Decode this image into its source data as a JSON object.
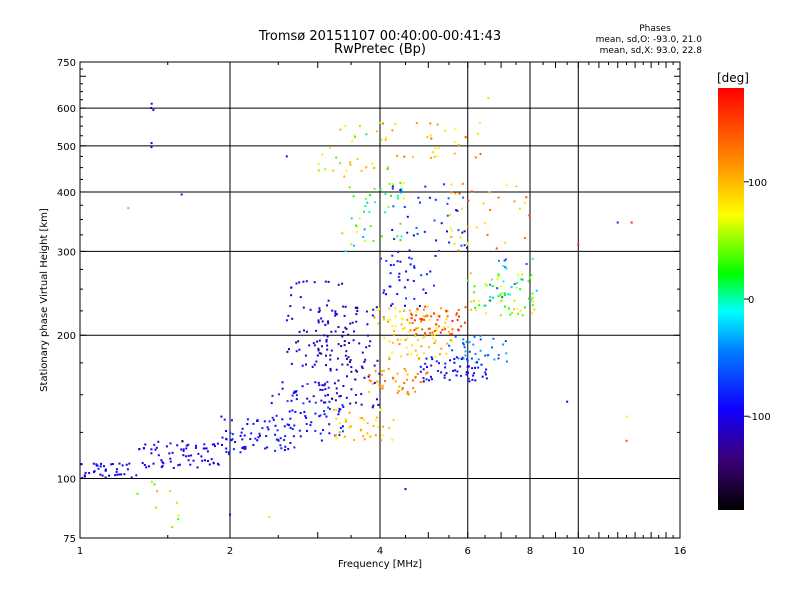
{
  "chart_data": {
    "type": "scatter",
    "title": "Tromsø 20151107 00:40:00-00:41:43",
    "subtitle": "RwPretec (Bp)",
    "xlabel": "Frequency [MHz]",
    "ylabel": "Stationary phase Virtual Height [km]",
    "x_scale": "log",
    "y_scale": "log",
    "xlim": [
      1,
      16
    ],
    "ylim": [
      75,
      750
    ],
    "x_ticks": [
      1,
      2,
      4,
      6,
      8,
      10,
      16
    ],
    "y_ticks": [
      75,
      100,
      200,
      300,
      400,
      500,
      600,
      750
    ],
    "x_gridlines": [
      2,
      4,
      6,
      8,
      10
    ],
    "y_gridlines": [
      100,
      200,
      300,
      400,
      500,
      600
    ],
    "info": {
      "heading": "Phases",
      "line1": "mean, sd,O: -93.0, 21.0",
      "line2": "mean, sd,X: 93.0, 22.8"
    },
    "colorbar": {
      "label": "[deg]",
      "ticks": [
        {
          "value": 100,
          "label": "100"
        },
        {
          "value": 0,
          "label": "0"
        },
        {
          "value": -100,
          "label": "-100"
        }
      ],
      "range": [
        -180,
        180
      ]
    },
    "clusters": [
      {
        "xmin": 1.0,
        "xmax": 1.3,
        "ymin": 100,
        "ymax": 108,
        "phase": -100,
        "spread": 12,
        "n": 40
      },
      {
        "xmin": 1.3,
        "xmax": 1.9,
        "ymin": 105,
        "ymax": 120,
        "phase": -100,
        "spread": 15,
        "n": 70
      },
      {
        "xmin": 1.9,
        "xmax": 2.7,
        "ymin": 112,
        "ymax": 135,
        "phase": -90,
        "spread": 15,
        "n": 70
      },
      {
        "xmin": 2.4,
        "xmax": 3.4,
        "ymin": 120,
        "ymax": 160,
        "phase": -85,
        "spread": 20,
        "n": 80
      },
      {
        "xmin": 2.6,
        "xmax": 3.5,
        "ymin": 170,
        "ymax": 260,
        "phase": -110,
        "spread": 20,
        "n": 60
      },
      {
        "xmin": 3.0,
        "xmax": 4.0,
        "ymin": 140,
        "ymax": 230,
        "phase": -115,
        "spread": 18,
        "n": 110
      },
      {
        "xmin": 3.2,
        "xmax": 4.3,
        "ymin": 120,
        "ymax": 140,
        "phase": 90,
        "spread": 25,
        "n": 40
      },
      {
        "xmin": 3.8,
        "xmax": 5.0,
        "ymin": 150,
        "ymax": 170,
        "phase": 110,
        "spread": 25,
        "n": 45
      },
      {
        "xmin": 3.9,
        "xmax": 5.6,
        "ymin": 175,
        "ymax": 230,
        "phase": 95,
        "spread": 30,
        "n": 90
      },
      {
        "xmin": 4.6,
        "xmax": 6.0,
        "ymin": 200,
        "ymax": 230,
        "phase": 150,
        "spread": 25,
        "n": 50
      },
      {
        "xmin": 4.8,
        "xmax": 6.6,
        "ymin": 160,
        "ymax": 180,
        "phase": -90,
        "spread": 15,
        "n": 60
      },
      {
        "xmin": 5.5,
        "xmax": 7.2,
        "ymin": 175,
        "ymax": 200,
        "phase": -50,
        "spread": 20,
        "n": 35
      },
      {
        "xmin": 6.0,
        "xmax": 8.2,
        "ymin": 220,
        "ymax": 270,
        "phase": 60,
        "spread": 40,
        "n": 60
      },
      {
        "xmin": 4.0,
        "xmax": 5.2,
        "ymin": 230,
        "ymax": 300,
        "phase": -90,
        "spread": 25,
        "n": 40
      },
      {
        "xmin": 3.3,
        "xmax": 4.5,
        "ymin": 300,
        "ymax": 420,
        "phase": 20,
        "spread": 60,
        "n": 45
      },
      {
        "xmin": 4.2,
        "xmax": 6.0,
        "ymin": 300,
        "ymax": 420,
        "phase": -80,
        "spread": 30,
        "n": 40
      },
      {
        "xmin": 5.5,
        "xmax": 8.0,
        "ymin": 300,
        "ymax": 420,
        "phase": 110,
        "spread": 40,
        "n": 35
      },
      {
        "xmin": 3.0,
        "xmax": 4.2,
        "ymin": 430,
        "ymax": 560,
        "phase": 60,
        "spread": 50,
        "n": 30
      },
      {
        "xmin": 4.0,
        "xmax": 6.5,
        "ymin": 470,
        "ymax": 560,
        "phase": 100,
        "spread": 40,
        "n": 30
      },
      {
        "xmin": 6.5,
        "xmax": 8.5,
        "ymin": 230,
        "ymax": 290,
        "phase": -30,
        "spread": 40,
        "n": 25
      },
      {
        "xmin": 1.3,
        "xmax": 1.6,
        "ymin": 78,
        "ymax": 100,
        "phase": 70,
        "spread": 40,
        "n": 10
      },
      {
        "xmin": 1.4,
        "xmax": 1.4,
        "ymin": 490,
        "ymax": 620,
        "phase": -105,
        "spread": 5,
        "n": 5
      }
    ],
    "outliers": [
      {
        "x": 1.6,
        "y": 395,
        "phase": -100
      },
      {
        "x": 1.25,
        "y": 370,
        "phase": 0
      },
      {
        "x": 9.5,
        "y": 145,
        "phase": -100
      },
      {
        "x": 12.5,
        "y": 120,
        "phase": 150
      },
      {
        "x": 12.5,
        "y": 135,
        "phase": 80
      },
      {
        "x": 12.0,
        "y": 345,
        "phase": -80
      },
      {
        "x": 12.8,
        "y": 345,
        "phase": 160
      },
      {
        "x": 10.0,
        "y": 310,
        "phase": 170
      },
      {
        "x": 6.6,
        "y": 630,
        "phase": 90
      },
      {
        "x": 2.6,
        "y": 475,
        "phase": -100
      },
      {
        "x": 4.5,
        "y": 95,
        "phase": -100
      },
      {
        "x": 2.0,
        "y": 84,
        "phase": -100
      },
      {
        "x": 2.4,
        "y": 83,
        "phase": 60
      }
    ]
  }
}
